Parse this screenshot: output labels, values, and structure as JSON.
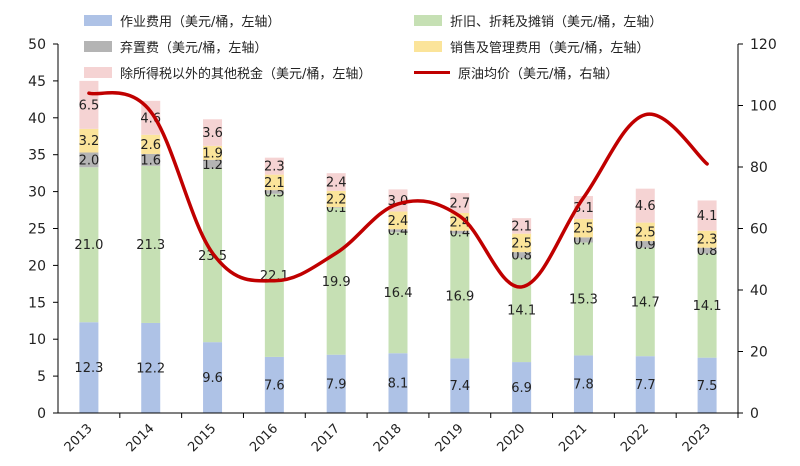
{
  "chart_data": {
    "type": "bar",
    "categories": [
      "2013",
      "2014",
      "2015",
      "2016",
      "2017",
      "2018",
      "2019",
      "2020",
      "2021",
      "2022",
      "2023"
    ],
    "series": [
      {
        "name": "作业费用（美元/桶，左轴）",
        "color": "#aec2e6",
        "values": [
          12.3,
          12.2,
          9.6,
          7.6,
          7.9,
          8.1,
          7.4,
          6.9,
          7.8,
          7.7,
          7.5
        ]
      },
      {
        "name": "折旧、折耗及摊销（美元/桶，左轴）",
        "color": "#c6e0b4",
        "values": [
          21.0,
          21.3,
          23.5,
          22.1,
          19.9,
          16.4,
          16.9,
          14.1,
          15.3,
          14.7,
          14.1
        ]
      },
      {
        "name": "弃置费（美元/桶，左轴）",
        "color": "#b4b4b4",
        "values": [
          2.0,
          1.6,
          1.2,
          0.5,
          0.1,
          0.4,
          0.4,
          0.8,
          0.7,
          0.9,
          0.8
        ]
      },
      {
        "name": "销售及管理费用（美元/桶，左轴）",
        "color": "#fbe49a",
        "values": [
          3.2,
          2.6,
          1.9,
          2.1,
          2.2,
          2.4,
          2.4,
          2.5,
          2.5,
          2.5,
          2.3
        ]
      },
      {
        "name": "除所得税以外的其他税金（美元/桶，左轴）",
        "color": "#f5d3d3",
        "values": [
          6.5,
          4.6,
          3.6,
          2.3,
          2.4,
          3.0,
          2.7,
          2.1,
          3.1,
          4.6,
          4.1
        ]
      }
    ],
    "line": {
      "name": "原油均价（美元/桶，右轴）",
      "color": "#c00000",
      "values": [
        104,
        98,
        52,
        43,
        52,
        68,
        64,
        41,
        70,
        97,
        81
      ]
    },
    "data_labels": {
      "作业费用（美元/桶，左轴）": [
        "12.3",
        "12.2",
        "9.6",
        "7.6",
        "7.9",
        "8.1",
        "7.4",
        "6.9",
        "7.8",
        "7.7",
        "7.5"
      ],
      "折旧、折耗及摊销（美元/桶，左轴）": [
        "21.0",
        "21.3",
        "23.5",
        "22.1",
        "19.9",
        "16.4",
        "16.9",
        "14.1",
        "15.3",
        "14.7",
        "14.1"
      ],
      "弃置费（美元/桶，左轴）": [
        "2.0",
        "1.6",
        "1.2",
        "0.5",
        "0.1",
        "0.4",
        "0.4",
        "0.8",
        "0.7",
        "0.9",
        "0.8"
      ],
      "销售及管理费用（美元/桶，左轴）": [
        "3.2",
        "2.6",
        "1.9",
        "2.1",
        "2.2",
        "2.4",
        "2.4",
        "2.5",
        "2.5",
        "2.5",
        "2.3"
      ],
      "除所得税以外的其他税金（美元/桶，左轴）": [
        "6.5",
        "4.6",
        "3.6",
        "2.3",
        "2.4",
        "3.0",
        "2.7",
        "2.1",
        "3.1",
        "4.6",
        "4.1"
      ]
    },
    "y_left": {
      "min": 0,
      "max": 50,
      "ticks": [
        "0",
        "5",
        "10",
        "15",
        "20",
        "25",
        "30",
        "35",
        "40",
        "45",
        "50"
      ]
    },
    "y_right": {
      "min": 0,
      "max": 120,
      "ticks": [
        "0",
        "20",
        "40",
        "60",
        "80",
        "100",
        "120"
      ]
    },
    "xlabel": "",
    "ylabel": "",
    "grid": false,
    "legend_position": "top"
  }
}
